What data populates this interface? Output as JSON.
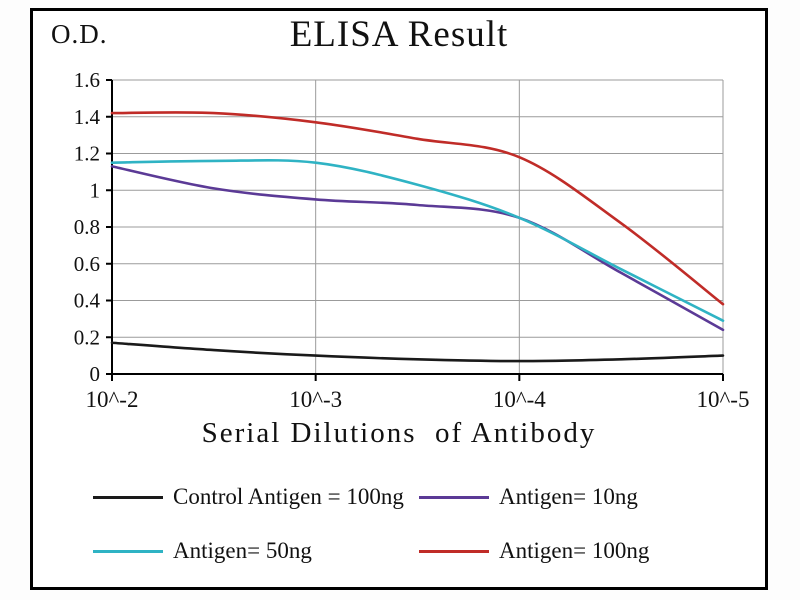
{
  "chart_data": {
    "type": "line",
    "title": "ELISA Result",
    "ylabel": "O.D.",
    "xlabel": "Serial Dilutions  of Antibody",
    "x_tick_labels": [
      "10^-2",
      "10^-3",
      "10^-4",
      "10^-5"
    ],
    "ylim": [
      0,
      1.6
    ],
    "ytick_step": 0.2,
    "grid": true,
    "legend_position": "bottom",
    "axis_color": "#000000",
    "grid_color": "#9b9b9b",
    "x_note": "x values are in tick-index units: 0=10^-2, 1=10^-3, 2=10^-4, 3=10^-5",
    "series": [
      {
        "name": "Control Antigen = 100ng",
        "color": "#1a1a1a",
        "x": [
          0,
          0.5,
          1,
          1.5,
          2,
          2.5,
          3
        ],
        "values": [
          0.17,
          0.13,
          0.1,
          0.08,
          0.07,
          0.08,
          0.1
        ]
      },
      {
        "name": "Antigen= 10ng",
        "color": "#5b3a96",
        "x": [
          0,
          0.5,
          1,
          1.5,
          2,
          2.5,
          3
        ],
        "values": [
          1.13,
          1.01,
          0.95,
          0.92,
          0.85,
          0.55,
          0.24
        ]
      },
      {
        "name": "Antigen= 50ng",
        "color": "#2fb3c4",
        "x": [
          0,
          0.5,
          1,
          1.5,
          2,
          2.5,
          3
        ],
        "values": [
          1.15,
          1.16,
          1.15,
          1.03,
          0.85,
          0.57,
          0.29
        ]
      },
      {
        "name": "Antigen= 100ng",
        "color": "#c02c28",
        "x": [
          0,
          0.5,
          1,
          1.5,
          2,
          2.5,
          3
        ],
        "values": [
          1.42,
          1.42,
          1.37,
          1.28,
          1.18,
          0.82,
          0.38
        ]
      }
    ]
  }
}
